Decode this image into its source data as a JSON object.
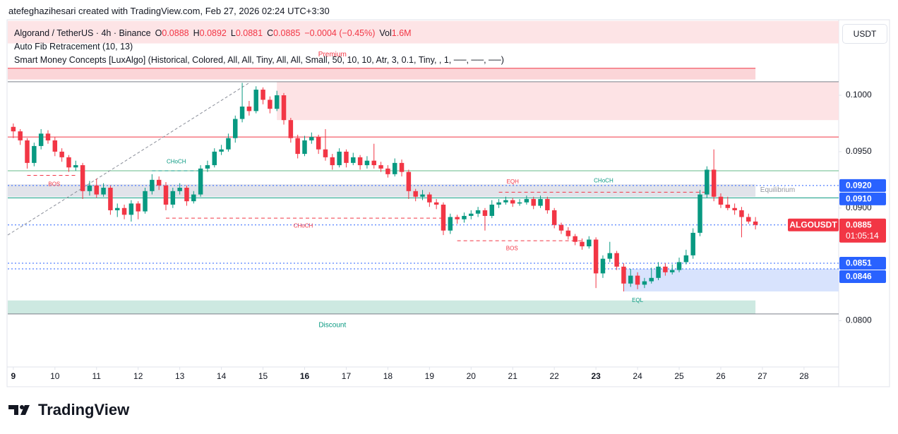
{
  "header": "atefeghazihesari created with TradingView.com, Feb 27, 2026 02:24 UTC+3:30",
  "legend": {
    "name": "Algorand / TetherUS · 4h · Binance",
    "ohlc_labels": [
      "O",
      "H",
      "L",
      "C"
    ],
    "open": 0.0888,
    "high": 0.0892,
    "low": 0.0881,
    "close": 0.0885,
    "change": "−0.0004 (−0.45%)",
    "volume_label": "Vol",
    "volume": "1.6M",
    "indicators": [
      "Auto Fib Retracement (10, 13)",
      "Smart Money Concepts [LuxAlgo] (Historical, Colored, All, All, Tiny, All, All, Small, 50, 10, 10, Atr, 3, 0.1, Tiny, , 1, ──, ──, ──)"
    ]
  },
  "currency": "USDT",
  "watermark": "TradingView",
  "chart_data": {
    "type": "candlestick",
    "up_color": "#089981",
    "down_color": "#f23645",
    "grid": false,
    "xlim": [
      -0.8,
      119
    ],
    "ylim": [
      0.0759,
      0.1067
    ],
    "xticks": [
      {
        "value": 0,
        "label": "9",
        "bold": true
      },
      {
        "value": 6,
        "label": "10"
      },
      {
        "value": 12,
        "label": "11"
      },
      {
        "value": 18,
        "label": "12"
      },
      {
        "value": 24,
        "label": "13"
      },
      {
        "value": 30,
        "label": "14"
      },
      {
        "value": 36,
        "label": "15"
      },
      {
        "value": 42,
        "label": "16",
        "bold": true
      },
      {
        "value": 48,
        "label": "17"
      },
      {
        "value": 54,
        "label": "18"
      },
      {
        "value": 60,
        "label": "19"
      },
      {
        "value": 66,
        "label": "20"
      },
      {
        "value": 72,
        "label": "21"
      },
      {
        "value": 78,
        "label": "22"
      },
      {
        "value": 84,
        "label": "23",
        "bold": true
      },
      {
        "value": 90,
        "label": "24"
      },
      {
        "value": 96,
        "label": "25"
      },
      {
        "value": 102,
        "label": "26"
      },
      {
        "value": 108,
        "label": "27"
      },
      {
        "value": 114,
        "label": "28"
      }
    ],
    "yticks": [
      {
        "value": 0.1,
        "label": "0.1000"
      },
      {
        "value": 0.095,
        "label": "0.0950"
      },
      {
        "value": 0.09,
        "label": "0.0900"
      },
      {
        "value": 0.08,
        "label": "0.0800"
      }
    ],
    "candles": [
      [
        0.0972,
        0.0975,
        0.0962,
        0.0968
      ],
      [
        0.0968,
        0.097,
        0.0956,
        0.096
      ],
      [
        0.096,
        0.0962,
        0.0935,
        0.094
      ],
      [
        0.094,
        0.0958,
        0.0937,
        0.0955
      ],
      [
        0.0955,
        0.097,
        0.0952,
        0.0966
      ],
      [
        0.0966,
        0.0969,
        0.0957,
        0.096
      ],
      [
        0.096,
        0.0963,
        0.0946,
        0.095
      ],
      [
        0.095,
        0.0953,
        0.0941,
        0.0945
      ],
      [
        0.0945,
        0.0947,
        0.0932,
        0.0936
      ],
      [
        0.0936,
        0.0942,
        0.0933,
        0.0938
      ],
      [
        0.0938,
        0.094,
        0.0908,
        0.0915
      ],
      [
        0.0915,
        0.0924,
        0.0911,
        0.092
      ],
      [
        0.092,
        0.0926,
        0.0909,
        0.0912
      ],
      [
        0.0912,
        0.0922,
        0.091,
        0.0918
      ],
      [
        0.0918,
        0.092,
        0.0894,
        0.0898
      ],
      [
        0.0898,
        0.0904,
        0.0892,
        0.09
      ],
      [
        0.09,
        0.0903,
        0.089,
        0.0894
      ],
      [
        0.0894,
        0.0907,
        0.0888,
        0.0904
      ],
      [
        0.0904,
        0.0906,
        0.089,
        0.0897
      ],
      [
        0.0897,
        0.0918,
        0.0895,
        0.0915
      ],
      [
        0.0915,
        0.093,
        0.0912,
        0.0925
      ],
      [
        0.0925,
        0.0928,
        0.0916,
        0.092
      ],
      [
        0.092,
        0.0923,
        0.0898,
        0.0903
      ],
      [
        0.0903,
        0.0918,
        0.09,
        0.0915
      ],
      [
        0.0915,
        0.0922,
        0.0912,
        0.0918
      ],
      [
        0.0918,
        0.092,
        0.0902,
        0.0906
      ],
      [
        0.0906,
        0.0915,
        0.0904,
        0.0912
      ],
      [
        0.0912,
        0.0938,
        0.091,
        0.0935
      ],
      [
        0.0935,
        0.0942,
        0.0932,
        0.0938
      ],
      [
        0.0938,
        0.0953,
        0.0936,
        0.095
      ],
      [
        0.095,
        0.0956,
        0.0947,
        0.0952
      ],
      [
        0.0952,
        0.0966,
        0.095,
        0.0962
      ],
      [
        0.0962,
        0.0982,
        0.0958,
        0.0979
      ],
      [
        0.0979,
        0.1011,
        0.0976,
        0.099
      ],
      [
        0.099,
        0.0995,
        0.0982,
        0.0986
      ],
      [
        0.0986,
        0.1008,
        0.0984,
        0.1005
      ],
      [
        0.1005,
        0.1007,
        0.0992,
        0.0996
      ],
      [
        0.0996,
        0.0999,
        0.0984,
        0.0988
      ],
      [
        0.0988,
        0.1004,
        0.0986,
        0.1
      ],
      [
        0.1,
        0.1002,
        0.0974,
        0.0978
      ],
      [
        0.0978,
        0.098,
        0.0958,
        0.0962
      ],
      [
        0.0962,
        0.0965,
        0.0944,
        0.0948
      ],
      [
        0.0948,
        0.0964,
        0.0946,
        0.096
      ],
      [
        0.096,
        0.0967,
        0.0957,
        0.0963
      ],
      [
        0.0963,
        0.0965,
        0.0948,
        0.0952
      ],
      [
        0.0952,
        0.097,
        0.0942,
        0.0945
      ],
      [
        0.0945,
        0.0948,
        0.0934,
        0.0938
      ],
      [
        0.0938,
        0.0953,
        0.0936,
        0.095
      ],
      [
        0.095,
        0.0952,
        0.0936,
        0.094
      ],
      [
        0.094,
        0.0949,
        0.0938,
        0.0945
      ],
      [
        0.0945,
        0.0947,
        0.0934,
        0.0938
      ],
      [
        0.0938,
        0.0946,
        0.0935,
        0.0942
      ],
      [
        0.0942,
        0.0957,
        0.0935,
        0.0938
      ],
      [
        0.0938,
        0.0941,
        0.0932,
        0.0935
      ],
      [
        0.0935,
        0.0938,
        0.0927,
        0.093
      ],
      [
        0.093,
        0.0944,
        0.0928,
        0.094
      ],
      [
        0.094,
        0.0943,
        0.0928,
        0.0932
      ],
      [
        0.0932,
        0.0934,
        0.0908,
        0.0915
      ],
      [
        0.0915,
        0.0917,
        0.0906,
        0.091
      ],
      [
        0.091,
        0.0916,
        0.0907,
        0.0912
      ],
      [
        0.0912,
        0.0914,
        0.0901,
        0.0905
      ],
      [
        0.0905,
        0.0908,
        0.0899,
        0.0903
      ],
      [
        0.0903,
        0.0905,
        0.0876,
        0.088
      ],
      [
        0.088,
        0.0895,
        0.0877,
        0.0892
      ],
      [
        0.0892,
        0.0894,
        0.0886,
        0.089
      ],
      [
        0.089,
        0.0896,
        0.0887,
        0.0893
      ],
      [
        0.0893,
        0.0898,
        0.089,
        0.0895
      ],
      [
        0.0895,
        0.0901,
        0.0892,
        0.0898
      ],
      [
        0.0898,
        0.09,
        0.088,
        0.0893
      ],
      [
        0.0893,
        0.0907,
        0.0891,
        0.0903
      ],
      [
        0.0903,
        0.0908,
        0.09,
        0.0905
      ],
      [
        0.0905,
        0.091,
        0.0903,
        0.0907
      ],
      [
        0.0907,
        0.0909,
        0.0901,
        0.0904
      ],
      [
        0.0904,
        0.0908,
        0.0902,
        0.0905
      ],
      [
        0.0905,
        0.0911,
        0.0903,
        0.0908
      ],
      [
        0.0908,
        0.091,
        0.0899,
        0.0902
      ],
      [
        0.0902,
        0.0911,
        0.09,
        0.0908
      ],
      [
        0.0908,
        0.091,
        0.0895,
        0.0898
      ],
      [
        0.0898,
        0.09,
        0.0882,
        0.0885
      ],
      [
        0.0885,
        0.0887,
        0.0877,
        0.088
      ],
      [
        0.088,
        0.0883,
        0.0872,
        0.0875
      ],
      [
        0.0875,
        0.0877,
        0.0867,
        0.087
      ],
      [
        0.087,
        0.0873,
        0.0863,
        0.0866
      ],
      [
        0.0866,
        0.0875,
        0.0864,
        0.0872
      ],
      [
        0.0872,
        0.0874,
        0.0829,
        0.0842
      ],
      [
        0.0842,
        0.0858,
        0.0838,
        0.0855
      ],
      [
        0.0855,
        0.087,
        0.0852,
        0.086
      ],
      [
        0.086,
        0.0862,
        0.0845,
        0.0848
      ],
      [
        0.0848,
        0.0851,
        0.0826,
        0.0833
      ],
      [
        0.0833,
        0.0846,
        0.083,
        0.084
      ],
      [
        0.084,
        0.0843,
        0.0828,
        0.0832
      ],
      [
        0.0832,
        0.0838,
        0.0829,
        0.0835
      ],
      [
        0.0835,
        0.0847,
        0.0833,
        0.0838
      ],
      [
        0.0838,
        0.0852,
        0.0836,
        0.0848
      ],
      [
        0.0848,
        0.0851,
        0.084,
        0.0843
      ],
      [
        0.0843,
        0.085,
        0.0841,
        0.0845
      ],
      [
        0.0845,
        0.0856,
        0.0843,
        0.0852
      ],
      [
        0.0852,
        0.0863,
        0.085,
        0.0858
      ],
      [
        0.0858,
        0.0882,
        0.0855,
        0.0878
      ],
      [
        0.0878,
        0.0916,
        0.0875,
        0.0912
      ],
      [
        0.0912,
        0.0937,
        0.0909,
        0.0934
      ],
      [
        0.0934,
        0.0952,
        0.0906,
        0.091
      ],
      [
        0.091,
        0.0913,
        0.09,
        0.0903
      ],
      [
        0.0903,
        0.091,
        0.0898,
        0.09
      ],
      [
        0.09,
        0.0904,
        0.0894,
        0.0898
      ],
      [
        0.0898,
        0.0901,
        0.0874,
        0.0892
      ],
      [
        0.0892,
        0.0895,
        0.0886,
        0.0888
      ],
      [
        0.0888,
        0.0892,
        0.0881,
        0.0885
      ]
    ],
    "zones": [
      {
        "top": 0.1066,
        "bottom": 0.1046,
        "from": -0.8,
        "to": 119,
        "color": "#fde4e6"
      },
      {
        "top": 0.1024,
        "bottom": 0.1014,
        "from": -0.8,
        "to": 107,
        "color": "#fbd5d8"
      },
      {
        "top": 0.1012,
        "bottom": 0.0978,
        "from": 38,
        "to": 119,
        "color": "#fde3e5"
      },
      {
        "top": 0.0921,
        "bottom": 0.091,
        "from": -0.8,
        "to": 107,
        "color": "#e1e3ea"
      },
      {
        "top": 0.0846,
        "bottom": 0.0826,
        "from": 88,
        "to": 119,
        "color": "#d8e3fd"
      },
      {
        "top": 0.0818,
        "bottom": 0.0806,
        "from": -0.8,
        "to": 107,
        "color": "#cde9e1"
      }
    ],
    "levels": [
      {
        "price": 0.1024,
        "from": -0.8,
        "to": 107,
        "color": "#f23645"
      },
      {
        "price": 0.1012,
        "from": -0.8,
        "to": 119,
        "color": "#7b7f8a"
      },
      {
        "price": 0.0963,
        "from": -0.8,
        "to": 119,
        "color": "#f23645"
      },
      {
        "price": 0.0933,
        "from": -0.8,
        "to": 119,
        "color": "#66bb8a"
      },
      {
        "price": 0.0909,
        "from": -0.8,
        "to": 119,
        "color": "#089981"
      },
      {
        "price": 0.0806,
        "from": -0.8,
        "to": 119,
        "color": "#7b7f8a"
      },
      {
        "price": 0.092,
        "from": -0.8,
        "to": 119,
        "color": "#2962ff",
        "dash": "2 3"
      },
      {
        "price": 0.0885,
        "from": -0.8,
        "to": 119,
        "color": "#2962ff",
        "dash": "2 3"
      },
      {
        "price": 0.0851,
        "from": -0.8,
        "to": 119,
        "color": "#2962ff",
        "dash": "2 3"
      },
      {
        "price": 0.0846,
        "from": -0.8,
        "to": 119,
        "color": "#2962ff",
        "dash": "2 3"
      },
      {
        "price": 0.0929,
        "from": 2,
        "to": 9,
        "color": "#f23645",
        "dash": "5 4"
      },
      {
        "price": 0.0933,
        "from": 20,
        "to": 27,
        "color": "#089981",
        "dash": "5 4"
      },
      {
        "price": 0.0891,
        "from": 22,
        "to": 62,
        "color": "#f23645",
        "dash": "5 4"
      },
      {
        "price": 0.0914,
        "from": 70,
        "to": 100,
        "color": "#f23645",
        "dash": "5 4"
      },
      {
        "price": 0.0871,
        "from": 64,
        "to": 82,
        "color": "#f23645",
        "dash": "5 4"
      }
    ],
    "fib_line": {
      "from": -0.8,
      "to": 34,
      "start": 0.0876,
      "end": 0.1011,
      "color": "#8a8e99"
    },
    "annotations": [
      {
        "text": "Premium",
        "x": 46,
        "price": 0.1036,
        "color": "#f23645"
      },
      {
        "text": "CHoCH",
        "x": 23.5,
        "price": 0.0941,
        "color": "#089981"
      },
      {
        "text": "BOS",
        "x": 5.9,
        "price": 0.0921,
        "color": "#f23645"
      },
      {
        "text": "CHoCH",
        "x": 41.8,
        "price": 0.0884,
        "color": "#f23645"
      },
      {
        "text": "EQH",
        "x": 72,
        "price": 0.0923,
        "color": "#f23645"
      },
      {
        "text": "BOS",
        "x": 71.9,
        "price": 0.0864,
        "color": "#f23645"
      },
      {
        "text": "CHoCH",
        "x": 85.1,
        "price": 0.0924,
        "color": "#089981"
      },
      {
        "text": "EQL",
        "x": 90,
        "price": 0.0818,
        "color": "#089981"
      },
      {
        "text": "Equilibrium",
        "x": 110.2,
        "price": 0.0916,
        "color": "#9598a1"
      },
      {
        "text": "Discount",
        "x": 46,
        "price": 0.0796,
        "color": "#089981"
      }
    ],
    "price_labels": [
      {
        "value": 0.092,
        "label": "0.0920",
        "color": "#2962ff"
      },
      {
        "value": 0.091,
        "label": "0.0910",
        "color": "#2962ff"
      },
      {
        "value": 0.0851,
        "color": "#2962ff"
      },
      {
        "value": 0.0846,
        "color": "#2962ff"
      }
    ],
    "last_price": {
      "symbol": "ALGOUSDT",
      "value": 0.0885,
      "countdown": "01:05:14",
      "color": "#f23645"
    }
  }
}
